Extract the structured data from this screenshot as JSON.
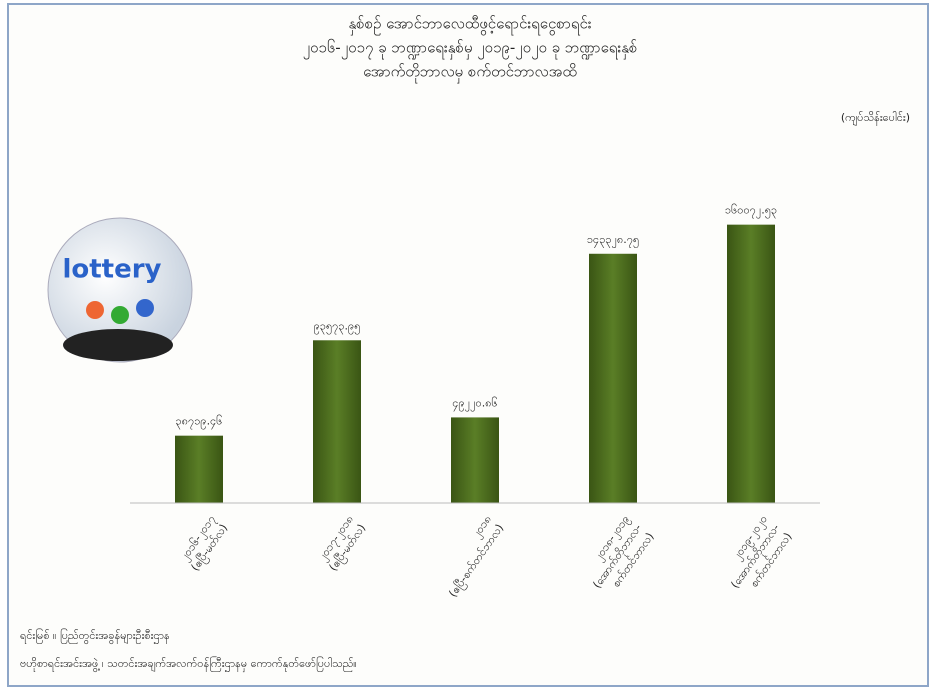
{
  "chart_data": {
    "type": "bar",
    "title_lines": [
      "နှစ်စဉ် အောင်ဘာလေထီဖွင့်ရောင်းရငွေစာရင်း",
      "၂၀၁၆-၂၀၁၇ ခု ဘဏ္ဍာရေးနှစ်မှ ၂၀၁၉-၂၀၂၀ ခု ဘဏ္ဍာရေးနှစ်",
      "အောက်တိုဘာလမှ စက်တင်ဘာလအထိ"
    ],
    "unit_label": "(ကျပ်သိန်းပေါင်း)",
    "image_label": "lottery",
    "categories": [
      [
        "၂၀၁၆-၂၀၁၇",
        "(ဧပြီ-မတ်လ)"
      ],
      [
        "၂၀၁၇-၂၀၁၈",
        "(ဧပြီ-မတ်လ)"
      ],
      [
        "၂၀၁၈",
        "(ဧပြီ-စက်တင်ဘာလ)"
      ],
      [
        "၂၀၁၈-၂၀၁၉",
        "(အောက်တိုဘာလ-",
        "စက်တင်ဘာလ)"
      ],
      [
        "၂၀၁၉-၂၀၂၀",
        "(အောက်တိုဘာလ-",
        "စက်တင်ဘာလ)"
      ]
    ],
    "values": [
      38719.46,
      93573.95,
      49220.86,
      143328.75,
      160072.53
    ],
    "value_labels": [
      "၃၈၇၁၉.၄၆",
      "၉၃၅၇၃.၉၅",
      "၄၉၂၂၀.၈၆",
      "၁၄၃၃၂၈.၇၅",
      "၁၆၀၀၇၂.၅၃"
    ],
    "color": "#4b6b1e",
    "ylim": [
      0,
      180000
    ],
    "source_lines": [
      "ရင်းမြစ် ။ ပြည်တွင်းအခွန်များဦးစီးဌာန",
      "ဗဟိုစာရင်းအင်းအဖွဲ့ ၊ သတင်းအချက်အလက်ဝန်ကြီးဌာနမှ ကောက်နုတ်ဖော်ပြပါသည်။"
    ]
  }
}
